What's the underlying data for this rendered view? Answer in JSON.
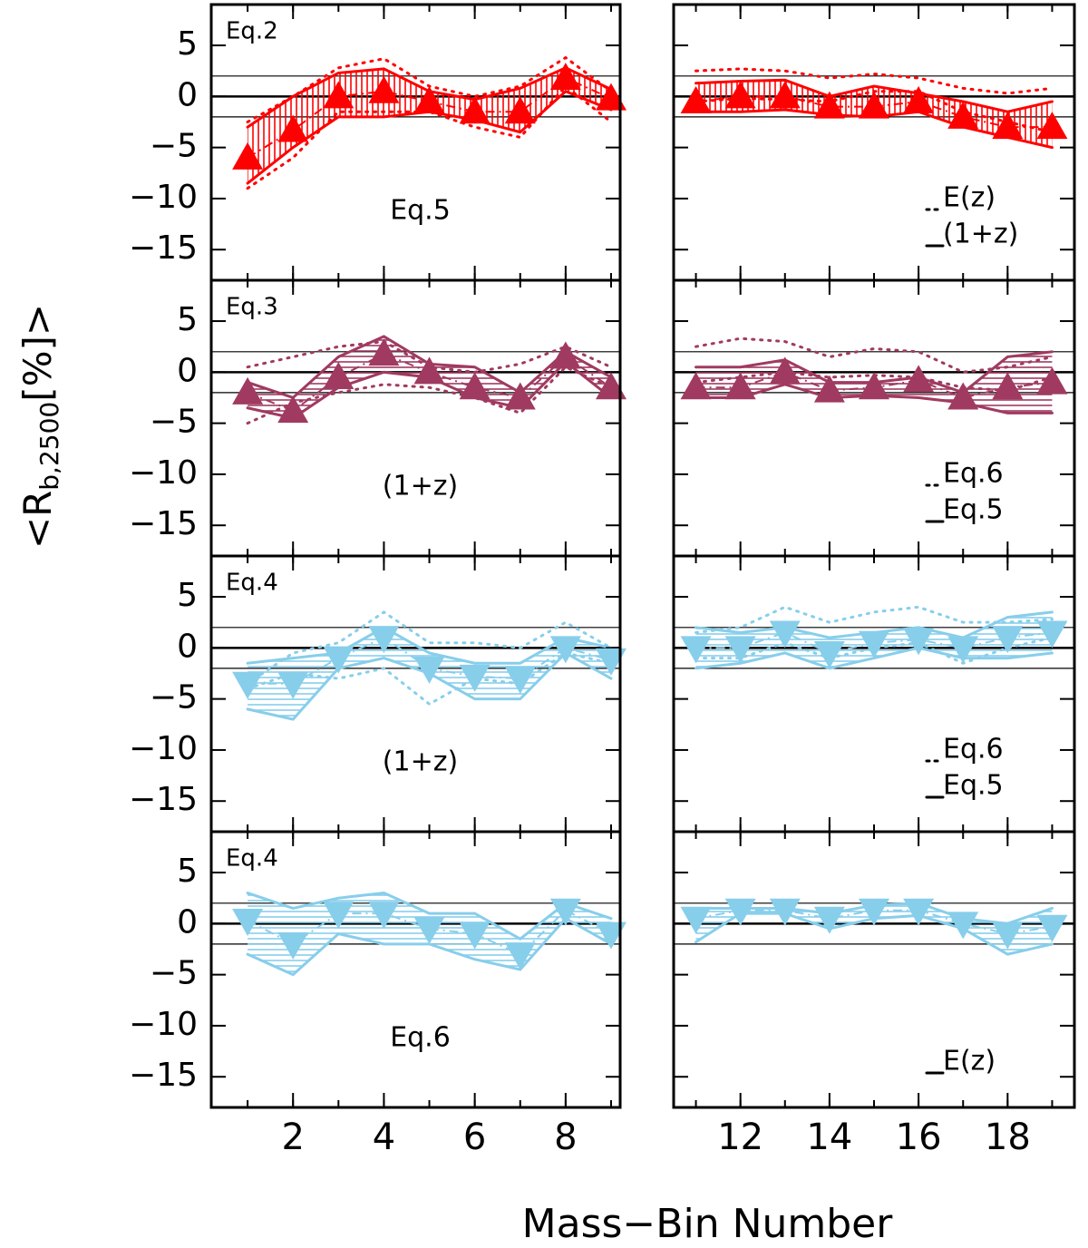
{
  "figure": {
    "xlabel": "Mass−Bin Number",
    "ylabel": {
      "main": "<R",
      "sub": "b,2500",
      "tail": "[%]>"
    }
  },
  "chart_data": [
    {
      "type": "line",
      "title": "Eq.2",
      "annotation": "Eq.5",
      "color": "#ff0000",
      "hatch": "vertical",
      "xlim": [
        0.2,
        9.2
      ],
      "xticks": [
        2,
        4,
        6,
        8
      ],
      "ylim": [
        -18,
        9
      ],
      "yticks": [
        5,
        0,
        {
          "value": -5,
          "label": "−5"
        },
        {
          "value": -10,
          "label": "−10"
        },
        {
          "value": -15,
          "label": "−15"
        }
      ],
      "hlines": [
        2,
        0,
        -2
      ],
      "x": [
        1,
        2,
        3,
        4,
        5,
        6,
        7,
        8,
        9
      ],
      "series": [
        {
          "marker": "triangle-up",
          "values": [
            -6,
            -3.3,
            0,
            0.5,
            -0.5,
            -1.5,
            -1.5,
            1.8,
            -0.2
          ]
        },
        {
          "style": "solid",
          "upper": [
            -3,
            0,
            2.3,
            2.7,
            0.5,
            -0.3,
            0.8,
            2.8,
            0.7
          ],
          "lower": [
            -8.5,
            -5,
            -2,
            -2,
            -1.5,
            -2.3,
            -3.5,
            0.5,
            -1.3
          ]
        },
        {
          "style": "dotted",
          "upper": [
            -2.5,
            0,
            2.8,
            3.7,
            1,
            0,
            1,
            3.8,
            0.5
          ],
          "lower": [
            -9,
            -6,
            -1.5,
            -1.5,
            -1.5,
            -3,
            -4,
            1,
            -2.5
          ]
        }
      ]
    },
    {
      "type": "line",
      "color": "#ff0000",
      "hatch": "vertical",
      "xlim": [
        10.5,
        19.5
      ],
      "xticks": [
        12,
        14,
        16,
        18
      ],
      "ylim": [
        -18,
        9
      ],
      "yticks": [
        5,
        0,
        -5,
        -10,
        -15
      ],
      "hlines": [
        2,
        0,
        -2
      ],
      "x": [
        11,
        12,
        13,
        14,
        15,
        16,
        17,
        18,
        19
      ],
      "series": [
        {
          "marker": "triangle-up",
          "values": [
            -0.5,
            0,
            0,
            -1,
            -1,
            -0.5,
            -2,
            -3,
            -3
          ]
        },
        {
          "name": "(1+z)",
          "style": "solid",
          "upper": [
            1.3,
            1.5,
            1.6,
            0,
            1,
            0.3,
            -0.5,
            -1.5,
            -0.5
          ],
          "lower": [
            -1.5,
            -1.5,
            -1.3,
            -1.8,
            -2,
            -1.5,
            -3,
            -4,
            -5
          ]
        },
        {
          "name": "E(z)",
          "style": "dotted",
          "upper": [
            2.5,
            2.7,
            2.5,
            1.8,
            2.2,
            1.8,
            0.8,
            0.3,
            0.8
          ],
          "lower": [
            -0.5,
            -0.2,
            -0.3,
            -0.5,
            0.5,
            0.5,
            -1.5,
            -2.5,
            -3.5
          ]
        }
      ]
    },
    {
      "type": "line",
      "title": "Eq.3",
      "annotation": "(1+z)",
      "color": "#a03a60",
      "hatch": "horizontal",
      "xlim": [
        0.2,
        9.2
      ],
      "xticks": [
        2,
        4,
        6,
        8
      ],
      "ylim": [
        -18,
        9
      ],
      "yticks": [
        5,
        0,
        {
          "value": -5,
          "label": "−5"
        },
        {
          "value": -10,
          "label": "−10"
        },
        {
          "value": -15,
          "label": "−15"
        }
      ],
      "hlines": [
        2,
        0,
        -2
      ],
      "x": [
        1,
        2,
        3,
        4,
        5,
        6,
        7,
        8,
        9
      ],
      "series": [
        {
          "marker": "triangle-up",
          "values": [
            -2,
            -3.8,
            -0.5,
            1.8,
            0,
            -1.5,
            -2.5,
            1.5,
            -1.5
          ]
        },
        {
          "style": "solid",
          "upper": [
            -1,
            -2.5,
            1.5,
            3.5,
            0.8,
            0.5,
            -2,
            2,
            -0.5
          ],
          "lower": [
            -3.5,
            -4.5,
            -1.5,
            0,
            -0.5,
            -2.5,
            -3.5,
            1,
            -2.5
          ]
        },
        {
          "style": "dotted",
          "upper": [
            0.5,
            1.5,
            2.5,
            3,
            0.5,
            0,
            0.8,
            2.5,
            0.5
          ],
          "lower": [
            -5,
            -3,
            -2,
            -1.2,
            -1.5,
            -2.5,
            -4,
            0.5,
            -1.5
          ]
        }
      ]
    },
    {
      "type": "line",
      "color": "#a03a60",
      "hatch": "horizontal",
      "xlim": [
        10.5,
        19.5
      ],
      "xticks": [
        12,
        14,
        16,
        18
      ],
      "ylim": [
        -18,
        9
      ],
      "yticks": [
        5,
        0,
        -5,
        -10,
        -15
      ],
      "hlines": [
        2,
        0,
        -2
      ],
      "x": [
        11,
        12,
        13,
        14,
        15,
        16,
        17,
        18,
        19
      ],
      "series": [
        {
          "marker": "triangle-up",
          "values": [
            -1.5,
            -1.5,
            0,
            -1.8,
            -1.5,
            -0.8,
            -2.5,
            -1.5,
            -1
          ]
        },
        {
          "name": "Eq.5",
          "style": "solid",
          "upper": [
            0.5,
            0.5,
            1.2,
            -1,
            -1,
            -0.5,
            -2,
            1.5,
            2
          ],
          "lower": [
            -2.5,
            -2.5,
            -1.2,
            -2.5,
            -2.3,
            -2.5,
            -3,
            -4,
            -4
          ]
        },
        {
          "name": "Eq.6",
          "style": "dotted",
          "upper": [
            2.5,
            3.3,
            3,
            1.5,
            2.3,
            2,
            0,
            0.5,
            1.5
          ],
          "lower": [
            -1,
            -0.5,
            0,
            -0.5,
            -0.3,
            -0.5,
            -1.5,
            -1.8,
            -0.5
          ]
        }
      ]
    },
    {
      "type": "line",
      "title": "Eq.4",
      "annotation": "(1+z)",
      "color": "#87ceeb",
      "hatch": "horizontal",
      "xlim": [
        0.2,
        9.2
      ],
      "xticks": [
        2,
        4,
        6,
        8
      ],
      "ylim": [
        -18,
        9
      ],
      "yticks": [
        5,
        0,
        {
          "value": -5,
          "label": "−5"
        },
        {
          "value": -10,
          "label": "−10"
        },
        {
          "value": -15,
          "label": "−15"
        }
      ],
      "hlines": [
        2,
        0,
        -2
      ],
      "x": [
        1,
        2,
        3,
        4,
        5,
        6,
        7,
        8,
        9
      ],
      "series": [
        {
          "marker": "triangle-down",
          "values": [
            -3.5,
            -3.5,
            -1,
            1,
            -2,
            -2.8,
            -3,
            0,
            -1.2
          ]
        },
        {
          "style": "solid",
          "upper": [
            -1.5,
            -1,
            -0.5,
            2,
            -0.5,
            -1.5,
            -1.5,
            1,
            0
          ],
          "lower": [
            -6,
            -7,
            -2,
            -1,
            -2.5,
            -5,
            -5,
            -0.5,
            -3
          ]
        },
        {
          "style": "dotted",
          "upper": [
            -3.5,
            -0.5,
            0.5,
            3.5,
            0.5,
            0.5,
            0,
            2.5,
            0
          ],
          "lower": [
            -4,
            -2.5,
            -3,
            -2,
            -5.5,
            -3,
            -3.5,
            -0.5,
            -1.5
          ]
        }
      ]
    },
    {
      "type": "line",
      "color": "#87ceeb",
      "hatch": "horizontal",
      "xlim": [
        10.5,
        19.5
      ],
      "xticks": [
        12,
        14,
        16,
        18
      ],
      "ylim": [
        -18,
        9
      ],
      "yticks": [
        5,
        0,
        -5,
        -10,
        -15
      ],
      "hlines": [
        2,
        0,
        -2
      ],
      "x": [
        11,
        12,
        13,
        14,
        15,
        16,
        17,
        18,
        19
      ],
      "series": [
        {
          "marker": "triangle-down",
          "values": [
            0,
            0,
            1.5,
            -0.5,
            0.5,
            0.8,
            0,
            1,
            1.5
          ]
        },
        {
          "name": "Eq.5",
          "style": "solid",
          "upper": [
            2,
            1.5,
            2,
            1,
            1.5,
            2,
            1,
            3,
            3.5
          ],
          "lower": [
            -2,
            -1.5,
            -0.5,
            -2,
            -1,
            0,
            -1,
            -1,
            -0.5
          ]
        },
        {
          "name": "Eq.6",
          "style": "dotted",
          "upper": [
            1.5,
            2,
            4,
            2.5,
            3.5,
            4,
            2.5,
            2.5,
            2.8
          ],
          "lower": [
            -1,
            -1,
            0.5,
            -1,
            0,
            0.5,
            -1.5,
            0,
            1
          ]
        }
      ]
    },
    {
      "type": "line",
      "title": "Eq.4",
      "annotation": "Eq.6",
      "color": "#87ceeb",
      "hatch": "horizontal",
      "xlim": [
        0.2,
        9.2
      ],
      "xticks": [
        2,
        4,
        6,
        8
      ],
      "ylim": [
        -18,
        9
      ],
      "yticks": [
        5,
        0,
        {
          "value": -5,
          "label": "−5"
        },
        {
          "value": -10,
          "label": "−10"
        },
        {
          "value": -15,
          "label": "−15"
        }
      ],
      "hlines": [
        2,
        0,
        -2
      ],
      "x": [
        1,
        2,
        3,
        4,
        5,
        6,
        7,
        8,
        9
      ],
      "series": [
        {
          "marker": "triangle-down",
          "values": [
            0.3,
            -2,
            1,
            1,
            -0.5,
            -1,
            -3,
            1.3,
            -1
          ]
        },
        {
          "style": "solid",
          "upper": [
            3,
            1.5,
            2.5,
            3,
            1,
            1,
            -1.5,
            2,
            0.5
          ],
          "lower": [
            -3,
            -5,
            -1,
            -2,
            -2,
            -3.5,
            -4.5,
            0.5,
            -2
          ]
        }
      ]
    },
    {
      "type": "line",
      "color": "#87ceeb",
      "hatch": "horizontal",
      "xlim": [
        10.5,
        19.5
      ],
      "xticks": [
        12,
        14,
        16,
        18
      ],
      "ylim": [
        -18,
        9
      ],
      "yticks": [
        5,
        0,
        -5,
        -10,
        -15
      ],
      "hlines": [
        2,
        0,
        -2
      ],
      "x": [
        11,
        12,
        13,
        14,
        15,
        16,
        17,
        18,
        19
      ],
      "series": [
        {
          "marker": "triangle-down",
          "values": [
            0.5,
            1.3,
            1.3,
            0.5,
            1.3,
            1.3,
            0,
            -1,
            -0.3
          ]
        },
        {
          "name": "E(z)",
          "style": "solid",
          "upper": [
            1.5,
            1.5,
            1.5,
            1,
            1.8,
            2,
            0.5,
            0,
            1.5
          ],
          "lower": [
            -1.8,
            1,
            1,
            -0.5,
            0.5,
            0.8,
            -0.5,
            -3,
            -2
          ]
        }
      ]
    }
  ]
}
